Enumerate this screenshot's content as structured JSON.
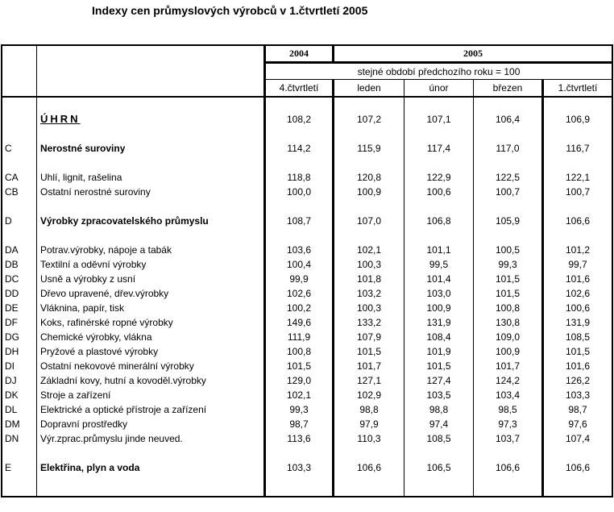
{
  "title": "Indexy cen průmyslových výrobců v 1.čtvrtletí 2005",
  "colors": {
    "background": "#ffffff",
    "text": "#000000",
    "border": "#000000"
  },
  "header": {
    "year_2004": "2004",
    "year_2005": "2005",
    "subheader": "stejné období předchozího roku = 100",
    "columns": [
      "4.čtvrtletí",
      "leden",
      "únor",
      "březen",
      "1.čtvrtletí"
    ]
  },
  "rows": [
    {
      "type": "spacer"
    },
    {
      "type": "uhrn",
      "code": "",
      "label": "ÚHRN",
      "values": [
        "108,2",
        "107,2",
        "107,1",
        "106,4",
        "106,9"
      ]
    },
    {
      "type": "spacer"
    },
    {
      "type": "bold",
      "code": "C",
      "label": "Nerostné suroviny",
      "values": [
        "114,2",
        "115,9",
        "117,4",
        "117,0",
        "116,7"
      ]
    },
    {
      "type": "spacer"
    },
    {
      "type": "normal",
      "code": "CA",
      "label": "Uhlí, lignit, rašelina",
      "values": [
        "118,8",
        "120,8",
        "122,9",
        "122,5",
        "122,1"
      ]
    },
    {
      "type": "normal",
      "code": "CB",
      "label": "Ostatní nerostné suroviny",
      "values": [
        "100,0",
        "100,9",
        "100,6",
        "100,7",
        "100,7"
      ]
    },
    {
      "type": "spacer"
    },
    {
      "type": "bold",
      "code": "D",
      "label": "Výrobky zpracovatelského průmyslu",
      "values": [
        "108,7",
        "107,0",
        "106,8",
        "105,9",
        "106,6"
      ]
    },
    {
      "type": "spacer"
    },
    {
      "type": "normal",
      "code": "DA",
      "label": "Potrav.výrobky, nápoje a tabák",
      "values": [
        "103,6",
        "102,1",
        "101,1",
        "100,5",
        "101,2"
      ]
    },
    {
      "type": "normal",
      "code": "DB",
      "label": "Textilní a oděvní výrobky",
      "values": [
        "100,4",
        "100,3",
        "99,5",
        "99,3",
        "99,7"
      ]
    },
    {
      "type": "normal",
      "code": "DC",
      "label": "Usně a výrobky z usní",
      "values": [
        "99,9",
        "101,8",
        "101,4",
        "101,5",
        "101,6"
      ]
    },
    {
      "type": "normal",
      "code": "DD",
      "label": "Dřevo upravené, dřev.výrobky",
      "values": [
        "102,6",
        "103,2",
        "103,0",
        "101,5",
        "102,6"
      ]
    },
    {
      "type": "normal",
      "code": "DE",
      "label": "Vláknina, papír, tisk",
      "values": [
        "100,2",
        "100,3",
        "100,9",
        "100,8",
        "100,6"
      ]
    },
    {
      "type": "normal",
      "code": "DF",
      "label": "Koks, rafinérské ropné výrobky",
      "values": [
        "149,6",
        "133,2",
        "131,9",
        "130,8",
        "131,9"
      ]
    },
    {
      "type": "normal",
      "code": "DG",
      "label": "Chemické výrobky, vlákna",
      "values": [
        "111,9",
        "107,9",
        "108,4",
        "109,0",
        "108,5"
      ]
    },
    {
      "type": "normal",
      "code": "DH",
      "label": "Pryžové a plastové výrobky",
      "values": [
        "100,8",
        "101,5",
        "101,9",
        "100,9",
        "101,5"
      ]
    },
    {
      "type": "normal",
      "code": "DI",
      "label": "Ostatní nekovové minerální výrobky",
      "values": [
        "101,5",
        "101,7",
        "101,5",
        "101,7",
        "101,6"
      ]
    },
    {
      "type": "normal",
      "code": "DJ",
      "label": "Základní kovy, hutní a kovoděl.výrobky",
      "values": [
        "129,0",
        "127,1",
        "127,4",
        "124,2",
        "126,2"
      ]
    },
    {
      "type": "normal",
      "code": "DK",
      "label": "Stroje a zařízení",
      "values": [
        "102,1",
        "102,9",
        "103,5",
        "103,4",
        "103,3"
      ]
    },
    {
      "type": "normal",
      "code": "DL",
      "label": "Elektrické a optické přístroje a zařízení",
      "values": [
        "99,3",
        "98,8",
        "98,8",
        "98,5",
        "98,7"
      ]
    },
    {
      "type": "normal",
      "code": "DM",
      "label": "Dopravní prostředky",
      "values": [
        "98,7",
        "97,9",
        "97,4",
        "97,3",
        "97,6"
      ]
    },
    {
      "type": "normal",
      "code": "DN",
      "label": "Výr.zprac.průmyslu jinde neuved.",
      "values": [
        "113,6",
        "110,3",
        "108,5",
        "103,7",
        "107,4"
      ]
    },
    {
      "type": "spacer"
    },
    {
      "type": "bold",
      "code": "E",
      "label": "Elektřina, plyn a voda",
      "values": [
        "103,3",
        "106,6",
        "106,5",
        "106,6",
        "106,6"
      ]
    }
  ]
}
